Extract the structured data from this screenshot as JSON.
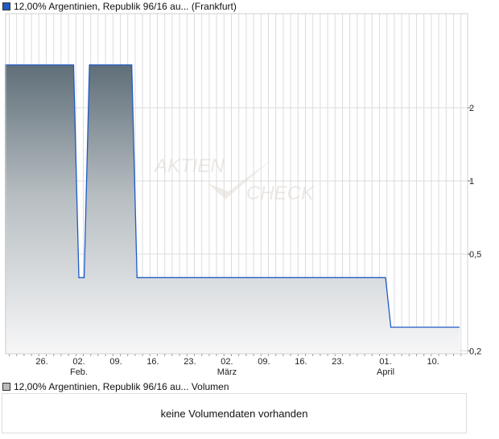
{
  "legend": {
    "price_label": "12,00% Argentinien, Republik 96/16 au... (Frankfurt)",
    "volume_label": "12,00% Argentinien, Republik 96/16 au... Volumen"
  },
  "volume_message": "keine Volumendaten vorhanden",
  "watermark": {
    "line1": "AKTIEN",
    "line2": "CHECK"
  },
  "colors": {
    "line": "#1f5bc4",
    "fill_top": "#5f6e78",
    "fill_bottom": "#f7f7f8",
    "grid": "#dcdcdc",
    "price_square": "#1f5bc4",
    "volume_square": "#bbbbbb"
  },
  "chart_data": {
    "type": "area",
    "title": "",
    "xlabel": "",
    "ylabel": "",
    "y_scale": "log",
    "ylim": [
      0.19,
      4.2
    ],
    "grid": true,
    "y_ticks": [
      {
        "v": 2,
        "label": "2"
      },
      {
        "v": 1,
        "label": "1"
      },
      {
        "v": 0.5,
        "label": "0,5"
      },
      {
        "v": 0.2,
        "label": "0,2"
      }
    ],
    "x_ticks": [
      {
        "date": "01-26",
        "label": "26.",
        "month": ""
      },
      {
        "date": "02-02",
        "label": "02.",
        "month": "Feb."
      },
      {
        "date": "02-09",
        "label": "09.",
        "month": ""
      },
      {
        "date": "02-16",
        "label": "16.",
        "month": ""
      },
      {
        "date": "02-23",
        "label": "23.",
        "month": ""
      },
      {
        "date": "03-02",
        "label": "02.",
        "month": "März"
      },
      {
        "date": "03-09",
        "label": "09.",
        "month": ""
      },
      {
        "date": "03-16",
        "label": "16.",
        "month": ""
      },
      {
        "date": "03-23",
        "label": "23.",
        "month": ""
      },
      {
        "date": "04-01",
        "label": "01.",
        "month": "April"
      },
      {
        "date": "04-10",
        "label": "10.",
        "month": ""
      }
    ],
    "series": [
      {
        "points": [
          {
            "date": "01-19",
            "value": 3
          },
          {
            "date": "02-01",
            "value": 3
          },
          {
            "date": "02-02",
            "value": 0.4
          },
          {
            "date": "02-03",
            "value": 0.4
          },
          {
            "date": "02-04",
            "value": 3
          },
          {
            "date": "02-12",
            "value": 3
          },
          {
            "date": "02-13",
            "value": 0.4
          },
          {
            "date": "04-01",
            "value": 0.4
          },
          {
            "date": "04-02",
            "value": 0.25
          },
          {
            "date": "04-15",
            "value": 0.25
          }
        ]
      }
    ]
  }
}
